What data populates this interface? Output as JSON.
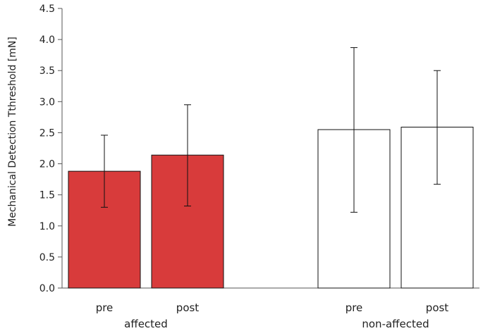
{
  "chart_data": {
    "type": "bar",
    "ylabel": "Mechanical Detection Tthreshold [mN]",
    "ylim": [
      0,
      4.5
    ],
    "yticks": [
      "0.0",
      "0.5",
      "1.0",
      "1.5",
      "2.0",
      "2.5",
      "3.0",
      "3.5",
      "4.0",
      "4.5"
    ],
    "groups": [
      {
        "label": "affected",
        "color": "#d83b3b",
        "bars": [
          {
            "label": "pre",
            "value": 1.88,
            "error_low": 1.3,
            "error_high": 2.46
          },
          {
            "label": "post",
            "value": 2.14,
            "error_low": 1.32,
            "error_high": 2.95
          }
        ]
      },
      {
        "label": "non-affected",
        "color": "#ffffff",
        "bars": [
          {
            "label": "pre",
            "value": 2.55,
            "error_low": 1.22,
            "error_high": 3.87
          },
          {
            "label": "post",
            "value": 2.59,
            "error_low": 1.67,
            "error_high": 3.5
          }
        ]
      }
    ],
    "grid": false,
    "legend": "none"
  }
}
